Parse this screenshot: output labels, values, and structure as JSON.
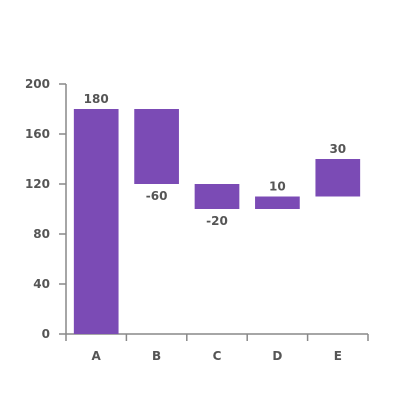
{
  "chart_data": {
    "type": "bar",
    "subtype": "waterfall",
    "categories": [
      "A",
      "B",
      "C",
      "D",
      "E"
    ],
    "values": [
      180,
      -60,
      -20,
      10,
      30
    ],
    "data_labels": [
      "180",
      "-60",
      "-20",
      "10",
      "30"
    ],
    "y_ticks": [
      "0",
      "40",
      "80",
      "120",
      "160",
      "200"
    ],
    "ylim": [
      0,
      200
    ],
    "grid": false,
    "legend": "none",
    "bar_color": "#7b4bb5"
  }
}
